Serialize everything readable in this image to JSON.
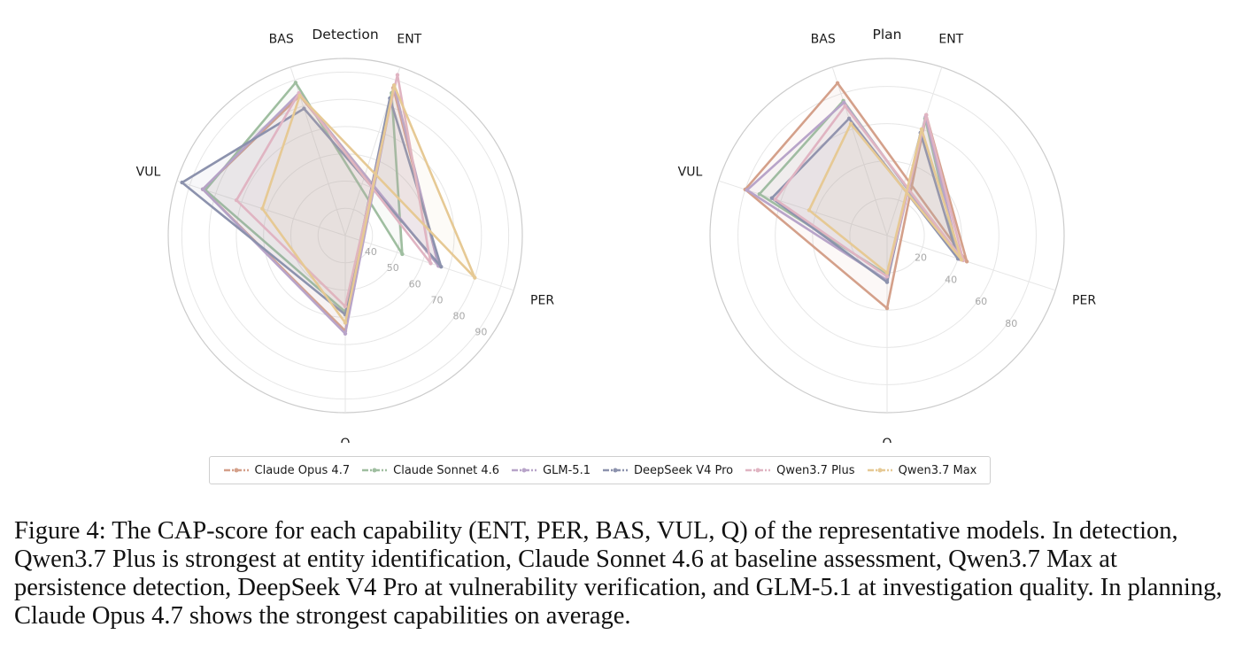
{
  "legend": [
    {
      "name": "Claude Opus 4.7",
      "color": "#d4a08a"
    },
    {
      "name": "Claude Sonnet 4.6",
      "color": "#9fbea0"
    },
    {
      "name": "GLM-5.1",
      "color": "#b8a4c9"
    },
    {
      "name": "DeepSeek V4 Pro",
      "color": "#8c92ad"
    },
    {
      "name": "Qwen3.7 Plus",
      "color": "#e0b4c2"
    },
    {
      "name": "Qwen3.7 Max",
      "color": "#e6c994"
    }
  ],
  "caption": "Figure 4: The CAP-score for each capability (ENT, PER, BAS, VUL, Q) of the representative models. In detection, Qwen3.7 Plus is strongest at entity identification, Claude Sonnet 4.6 at baseline assessment, Qwen3.7 Max at persistence detection, DeepSeek V4 Pro at vulnerability verification, and GLM-5.1 at investigation quality. In planning, Claude Opus 4.7 shows the strongest capabilities on average.",
  "chart_data": [
    {
      "type": "radar",
      "title": "Detection",
      "axes": [
        "ENT",
        "PER",
        "BAS",
        "VUL",
        "Q"
      ],
      "rlim": [
        30,
        95
      ],
      "ticks": [
        40,
        50,
        60,
        70,
        80,
        90
      ],
      "tick_labels": [
        "40",
        "50",
        "60",
        "70",
        "80",
        "90"
      ],
      "grid": true,
      "series": [
        {
          "name": "Claude Opus 4.7",
          "values": {
            "ENT": 87,
            "PER": 66,
            "BAS": 84,
            "VUL": 85,
            "Q": 65
          }
        },
        {
          "name": "Claude Sonnet 4.6",
          "values": {
            "ENT": 85,
            "PER": 52,
            "BAS": 89,
            "VUL": 84,
            "Q": 58
          }
        },
        {
          "name": "GLM-5.1",
          "values": {
            "ENT": 88,
            "PER": 66,
            "BAS": 85,
            "VUL": 85,
            "Q": 66
          }
        },
        {
          "name": "DeepSeek V4 Pro",
          "values": {
            "ENT": 83,
            "PER": 67,
            "BAS": 79,
            "VUL": 93,
            "Q": 59
          }
        },
        {
          "name": "Qwen3.7 Plus",
          "values": {
            "ENT": 92,
            "PER": 63,
            "BAS": 85,
            "VUL": 72,
            "Q": 56
          }
        },
        {
          "name": "Qwen3.7 Max",
          "values": {
            "ENT": 88,
            "PER": 80,
            "BAS": 84,
            "VUL": 62,
            "Q": 62
          }
        }
      ]
    },
    {
      "type": "radar",
      "title": "Plan",
      "axes": [
        "ENT",
        "PER",
        "BAS",
        "VUL",
        "Q"
      ],
      "rlim": [
        0,
        95
      ],
      "ticks": [
        20,
        40,
        60,
        80
      ],
      "tick_labels": [
        "20",
        "40",
        "60",
        "80"
      ],
      "grid": true,
      "series": [
        {
          "name": "Claude Opus 4.7",
          "values": {
            "ENT": 68,
            "PER": 45,
            "BAS": 86,
            "VUL": 80,
            "Q": 39
          }
        },
        {
          "name": "Claude Sonnet 4.6",
          "values": {
            "ENT": 66,
            "PER": 40,
            "BAS": 76,
            "VUL": 72,
            "Q": 21
          }
        },
        {
          "name": "GLM-5.1",
          "values": {
            "ENT": 67,
            "PER": 41,
            "BAS": 75,
            "VUL": 79,
            "Q": 24
          }
        },
        {
          "name": "DeepSeek V4 Pro",
          "values": {
            "ENT": 58,
            "PER": 40,
            "BAS": 66,
            "VUL": 65,
            "Q": 25
          }
        },
        {
          "name": "Qwen3.7 Plus",
          "values": {
            "ENT": 68,
            "PER": 43,
            "BAS": 73,
            "VUL": 63,
            "Q": 22
          }
        },
        {
          "name": "Qwen3.7 Max",
          "values": {
            "ENT": 60,
            "PER": 42,
            "BAS": 63,
            "VUL": 44,
            "Q": 20
          }
        }
      ]
    }
  ]
}
